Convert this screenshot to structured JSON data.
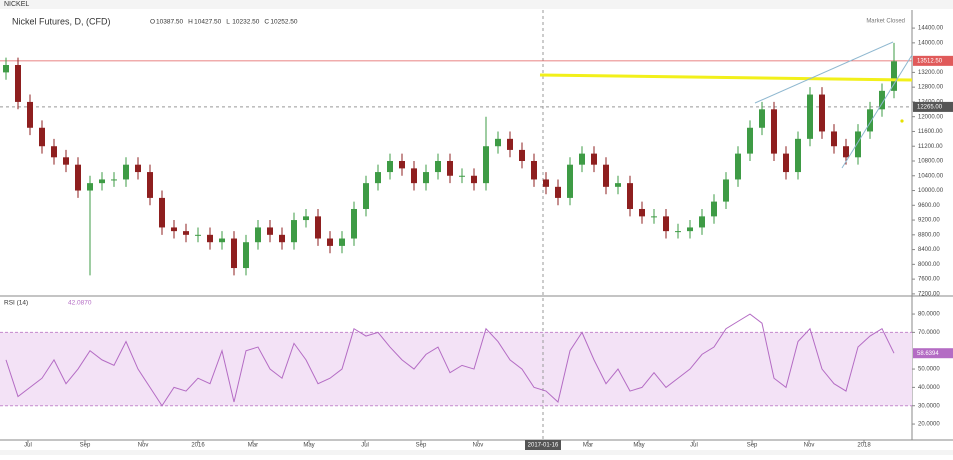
{
  "header": {
    "symbol": "NICKEL",
    "legend_title": "Nickel Futures, D, (CFD)",
    "legend_values": [
      {
        "key": "O",
        "value": "10387.50"
      },
      {
        "key": "H",
        "value": "10427.50"
      },
      {
        "key": "L",
        "value": "10232.50"
      },
      {
        "key": "C",
        "value": "10252.50"
      }
    ],
    "status": "Market Closed"
  },
  "chart_data": [
    {
      "type": "candlestick",
      "ylim": [
        7170,
        14890
      ],
      "yticks": [
        {
          "value": 7200,
          "label": "7200.00"
        },
        {
          "value": 7600,
          "label": "7600.00"
        },
        {
          "value": 8000,
          "label": "8000.00"
        },
        {
          "value": 8400,
          "label": "8400.00"
        },
        {
          "value": 8800,
          "label": "8800.00"
        },
        {
          "value": 9200,
          "label": "9200.00"
        },
        {
          "value": 9600,
          "label": "9600.00"
        },
        {
          "value": 10000,
          "label": "10000.00"
        },
        {
          "value": 10400,
          "label": "10400.00"
        },
        {
          "value": 10800,
          "label": "10800.00"
        },
        {
          "value": 11200,
          "label": "11200.00"
        },
        {
          "value": 11600,
          "label": "11600.00"
        },
        {
          "value": 12000,
          "label": "12000.00"
        },
        {
          "value": 12400,
          "label": "12400.00"
        },
        {
          "value": 12800,
          "label": "12800.00"
        },
        {
          "value": 13200,
          "label": "13200.00"
        },
        {
          "value": 14000,
          "label": "14000.00"
        },
        {
          "value": 14400,
          "label": "14400.00"
        }
      ],
      "xticks": [
        {
          "value": 1.83,
          "label": "Jul"
        },
        {
          "value": 6.58,
          "label": "Sep"
        },
        {
          "value": 11.42,
          "label": "Nov"
        },
        {
          "value": 16,
          "label": "2016"
        },
        {
          "value": 20.58,
          "label": "Mar"
        },
        {
          "value": 25.25,
          "label": "May"
        },
        {
          "value": 29.92,
          "label": "Jul"
        },
        {
          "value": 34.58,
          "label": "Sep"
        },
        {
          "value": 39.33,
          "label": "Nov"
        },
        {
          "value": 48.5,
          "label": "Mar"
        },
        {
          "value": 52.75,
          "label": "May"
        },
        {
          "value": 57.33,
          "label": "Jul"
        },
        {
          "value": 62.17,
          "label": "Sep"
        },
        {
          "value": 66.92,
          "label": "Nov"
        },
        {
          "value": 71.5,
          "label": "2018"
        }
      ],
      "up_color": "#3e9b45",
      "down_color": "#8e1f1f",
      "last_price": {
        "value": 13512.5,
        "label": "13512.50"
      },
      "crosshair_price": {
        "value": 12265,
        "label": "12265.00"
      },
      "crosshair_x": {
        "value": 44.75,
        "label": "2017-01-16"
      },
      "open": [
        13200,
        13400,
        12400,
        11700,
        11200,
        10900,
        10700,
        10000,
        10200,
        10300,
        10300,
        10700,
        10500,
        9800,
        9000,
        8900,
        8800,
        8800,
        8600,
        8700,
        7900,
        8600,
        9000,
        8800,
        8600,
        9200,
        9300,
        8700,
        8500,
        8700,
        9500,
        10200,
        10500,
        10800,
        10600,
        10200,
        10500,
        10800,
        10400,
        10400,
        10200,
        11200,
        11400,
        11100,
        10800,
        10300,
        10100,
        9800,
        10700,
        11000,
        10700,
        10100,
        10200,
        9500,
        9300,
        9300,
        8900,
        8900,
        9000,
        9300,
        9700,
        10300,
        11000,
        11700,
        12200,
        11000,
        10500,
        11400,
        12600,
        11600,
        11200,
        10900,
        11600,
        12200,
        12700
      ],
      "high": [
        13600,
        13600,
        12600,
        11900,
        11400,
        11100,
        10900,
        10400,
        10500,
        10500,
        10900,
        10900,
        10700,
        10000,
        9200,
        9100,
        9000,
        9000,
        8900,
        8900,
        8800,
        9200,
        9200,
        9000,
        9400,
        9500,
        9500,
        8900,
        8900,
        9700,
        10400,
        10700,
        11000,
        11000,
        10800,
        10700,
        11000,
        11000,
        10600,
        10600,
        12000,
        11600,
        11600,
        11300,
        11000,
        10500,
        10300,
        10900,
        11200,
        11200,
        10900,
        10400,
        10400,
        9700,
        9500,
        9500,
        9100,
        9200,
        9500,
        9900,
        10500,
        11200,
        11900,
        12400,
        12400,
        11200,
        11600,
        12800,
        12800,
        11800,
        11400,
        11800,
        12400,
        12900,
        14000
      ],
      "low": [
        13000,
        12200,
        11500,
        11000,
        10700,
        10500,
        9800,
        7700,
        10000,
        10100,
        10100,
        10300,
        9600,
        8800,
        8700,
        8600,
        8600,
        8400,
        8400,
        7700,
        7700,
        8400,
        8600,
        8400,
        8400,
        9000,
        8500,
        8300,
        8300,
        8500,
        9300,
        10000,
        10300,
        10400,
        10000,
        10000,
        10300,
        10200,
        10200,
        10000,
        10000,
        11000,
        10900,
        10600,
        10100,
        9900,
        9600,
        9600,
        10500,
        10500,
        9900,
        9900,
        9300,
        9100,
        9100,
        8700,
        8700,
        8700,
        8800,
        9100,
        9500,
        10100,
        10800,
        11500,
        10800,
        10300,
        10300,
        11200,
        11400,
        11000,
        10700,
        10700,
        11400,
        12000,
        12500
      ],
      "close": [
        13400,
        12400,
        11700,
        11200,
        10900,
        10700,
        10000,
        10200,
        10300,
        10300,
        10700,
        10500,
        9800,
        9000,
        8900,
        8800,
        8800,
        8600,
        8700,
        7900,
        8600,
        9000,
        8800,
        8600,
        9200,
        9300,
        8700,
        8500,
        8700,
        9500,
        10200,
        10500,
        10800,
        10600,
        10200,
        10500,
        10800,
        10400,
        10400,
        10200,
        11200,
        11400,
        11100,
        10800,
        10300,
        10100,
        9800,
        10700,
        11000,
        10700,
        10100,
        10200,
        9500,
        9300,
        9300,
        8900,
        8900,
        9000,
        9300,
        9700,
        10300,
        11000,
        11700,
        12200,
        11000,
        10500,
        11400,
        12600,
        11600,
        11200,
        10900,
        11600,
        12200,
        12700,
        13500
      ]
    },
    {
      "type": "line",
      "title": "RSI (14)",
      "title_value": "42.0870",
      "color": "#b46cc4",
      "ylim": [
        11.3,
        89.3
      ],
      "band": [
        30,
        70
      ],
      "yticks": [
        {
          "value": 20,
          "label": "20.0000"
        },
        {
          "value": 30,
          "label": "30.0000"
        },
        {
          "value": 40,
          "label": "40.0000"
        },
        {
          "value": 50,
          "label": "50.0000"
        },
        {
          "value": 70,
          "label": "70.0000"
        },
        {
          "value": 80,
          "label": "80.0000"
        }
      ],
      "last_value": {
        "value": 58.6394,
        "label": "58.6394"
      },
      "values": [
        55,
        35,
        40,
        45,
        55,
        42,
        50,
        60,
        55,
        52,
        65,
        50,
        40,
        30,
        40,
        38,
        45,
        42,
        60,
        32,
        60,
        62,
        50,
        45,
        64,
        55,
        42,
        45,
        50,
        72,
        68,
        70,
        62,
        55,
        50,
        58,
        62,
        48,
        52,
        50,
        72,
        65,
        55,
        50,
        40,
        38,
        32,
        60,
        70,
        55,
        42,
        50,
        38,
        40,
        48,
        40,
        45,
        50,
        58,
        62,
        72,
        76,
        80,
        75,
        45,
        40,
        65,
        72,
        50,
        42,
        38,
        62,
        68,
        72,
        58.6394
      ]
    }
  ]
}
